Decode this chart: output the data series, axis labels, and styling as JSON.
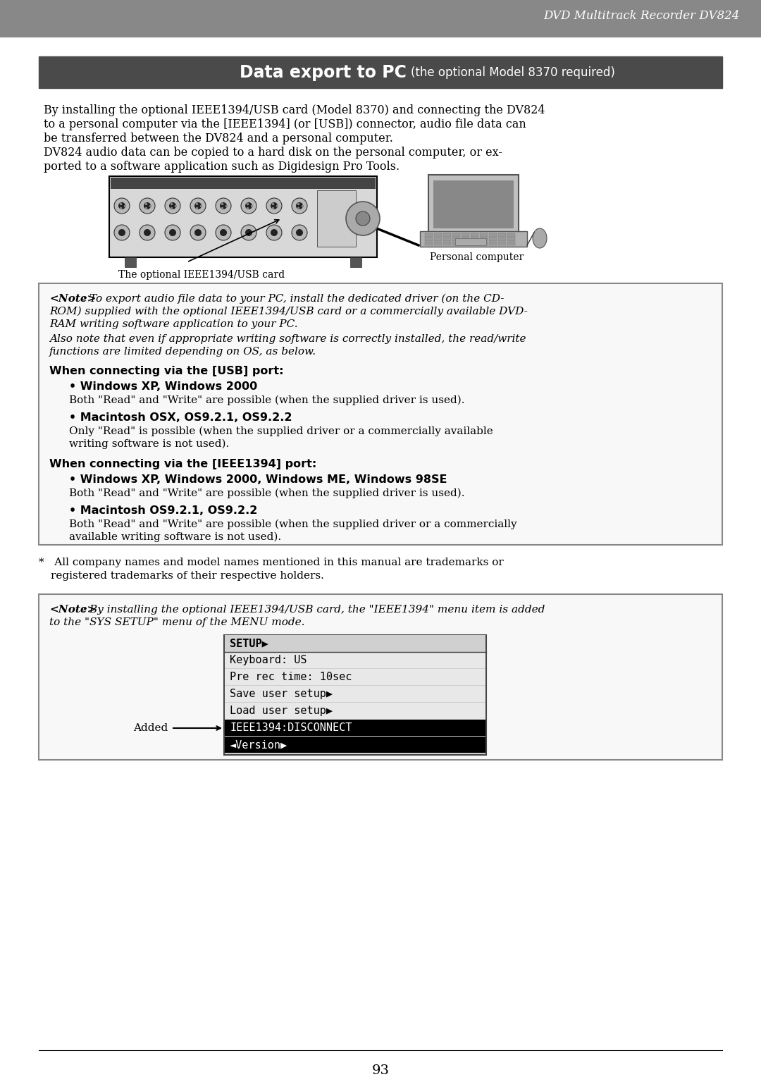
{
  "page_bg": "#ffffff",
  "header_bar_color": "#888888",
  "header_text": "DVD Multitrack Recorder DV824",
  "header_text_color": "#ffffff",
  "title_bar_color": "#4a4a4a",
  "title_bold": "Data export to PC",
  "title_normal": "(the optional Model 8370 required)",
  "title_text_color": "#ffffff",
  "body_text_color": "#000000",
  "note_box_border": "#888888",
  "note_box_bg": "#f8f8f8",
  "caption_device": "The optional IEEE1394/USB card",
  "caption_computer": "Personal computer",
  "usb_heading": "When connecting via the [USB] port:",
  "usb_win_bold": "• Windows XP, Windows 2000",
  "usb_win_text": "Both \"Read\" and \"Write\" are possible (when the supplied driver is used).",
  "usb_mac_bold": "• Macintosh OSX, OS9.2.1, OS9.2.2",
  "ieee_heading": "When connecting via the [IEEE1394] port:",
  "ieee_win_bold": "• Windows XP, Windows 2000, Windows ME, Windows 98SE",
  "ieee_win_text": "Both \"Read\" and \"Write\" are possible (when the supplied driver is used).",
  "ieee_mac_bold": "• Macintosh OS9.2.1, OS9.2.2",
  "added_label": "Added",
  "page_number": "93"
}
